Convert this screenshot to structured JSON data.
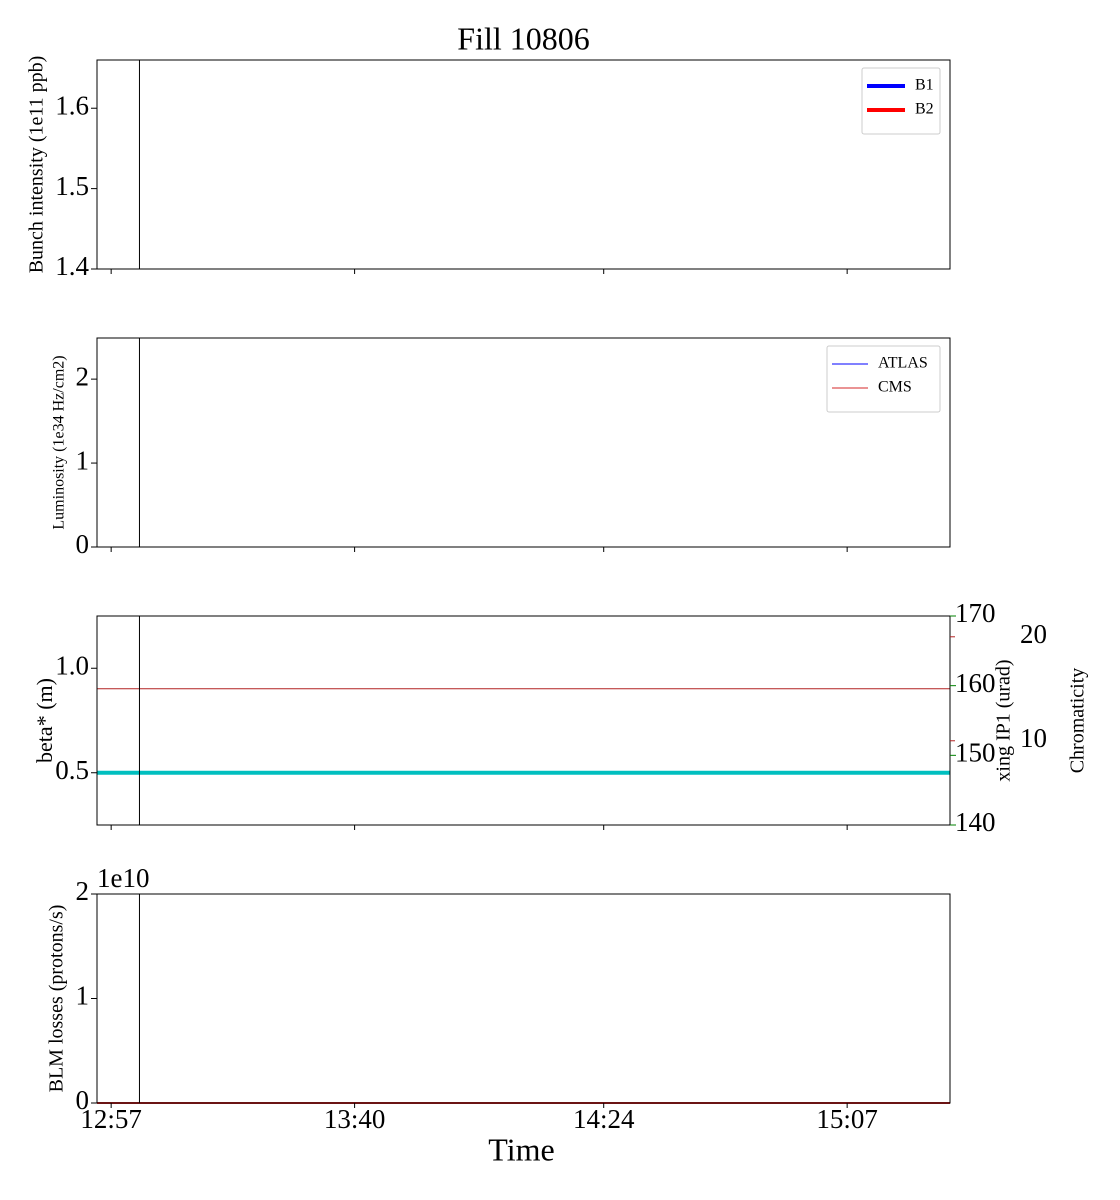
{
  "chart_data": [
    {
      "type": "line",
      "title": "Fill 10806",
      "ylabel": "Bunch intensity (1e11 ppb)",
      "ylim": [
        1.4,
        1.66
      ],
      "yticks": [
        1.4,
        1.5,
        1.6
      ],
      "xlim": [
        "12:54:30",
        "15:25:10"
      ],
      "xticks": [
        "12:57",
        "13:40",
        "14:24",
        "15:07"
      ],
      "vline": "13:02",
      "legend": "upper right",
      "legend_linewidth": 4,
      "x": [],
      "series": [
        {
          "name": "B1",
          "color": "#0000ff",
          "values": []
        },
        {
          "name": "B2",
          "color": "#ff0000",
          "values": []
        }
      ]
    },
    {
      "type": "line",
      "ylabel": "Luminosity (1e34 Hz/cm2)",
      "ylim": [
        0,
        2.49
      ],
      "yticks": [
        0,
        1,
        2
      ],
      "xlim": [
        "12:54:30",
        "15:25:10"
      ],
      "xticks": [
        "12:57",
        "13:40",
        "14:24",
        "15:07"
      ],
      "vline": "13:02",
      "legend": "upper right",
      "legend_linewidth": 1,
      "x": [
        "12:57",
        "15:25:10"
      ],
      "series": [
        {
          "name": "ATLAS",
          "color": "#0000ff",
          "values": [
            0,
            0
          ]
        },
        {
          "name": "CMS",
          "color": "#d62728",
          "values": [
            0,
            0
          ]
        }
      ]
    },
    {
      "type": "line",
      "ylabel": "beta* (m)",
      "ylabel_color": "#00bfbf",
      "ylim": [
        0.25,
        1.25
      ],
      "yticks": [
        {
          "value": 0.5,
          "label": "0.5"
        },
        {
          "value": 1,
          "label": "1.0"
        }
      ],
      "y2label": "xing IP1 (urad)",
      "y2label_color": "#008000",
      "y2lim": [
        140,
        170
      ],
      "y2ticks": [
        140,
        150,
        160,
        170
      ],
      "y3label": "Chromaticity",
      "y3label_color": "#b22222",
      "y3lim": [
        1.9,
        22
      ],
      "y3ticks": [
        10,
        20
      ],
      "xlim": [
        "12:54:30",
        "15:25:10"
      ],
      "xticks": [
        "12:57",
        "13:40",
        "14:24",
        "15:07"
      ],
      "vline": "13:02",
      "x": [
        "12:54:30",
        "15:25:10"
      ],
      "series": [
        {
          "color": "#00bfbf",
          "values": [
            0.5,
            0.5
          ],
          "axis": "y",
          "linewidth": 4
        },
        {
          "color": "#b22222",
          "values": [
            15,
            15
          ],
          "axis": "y3",
          "linewidth": 1
        }
      ]
    },
    {
      "type": "line",
      "ylabel": "BLM losses (protons/s)",
      "offset_label": "1e10",
      "xlabel": "Time",
      "ylim": [
        0,
        2
      ],
      "yticks": [
        0,
        1,
        2
      ],
      "xlim": [
        "12:54:30",
        "15:25:10"
      ],
      "xticks": [
        "12:57",
        "13:40",
        "14:24",
        "15:07"
      ],
      "vline": "13:02",
      "x": [
        "12:54:30",
        "15:25:10"
      ],
      "series": [
        {
          "color": "#d62728",
          "values": [
            0,
            0
          ],
          "linewidth": 2
        }
      ]
    }
  ]
}
